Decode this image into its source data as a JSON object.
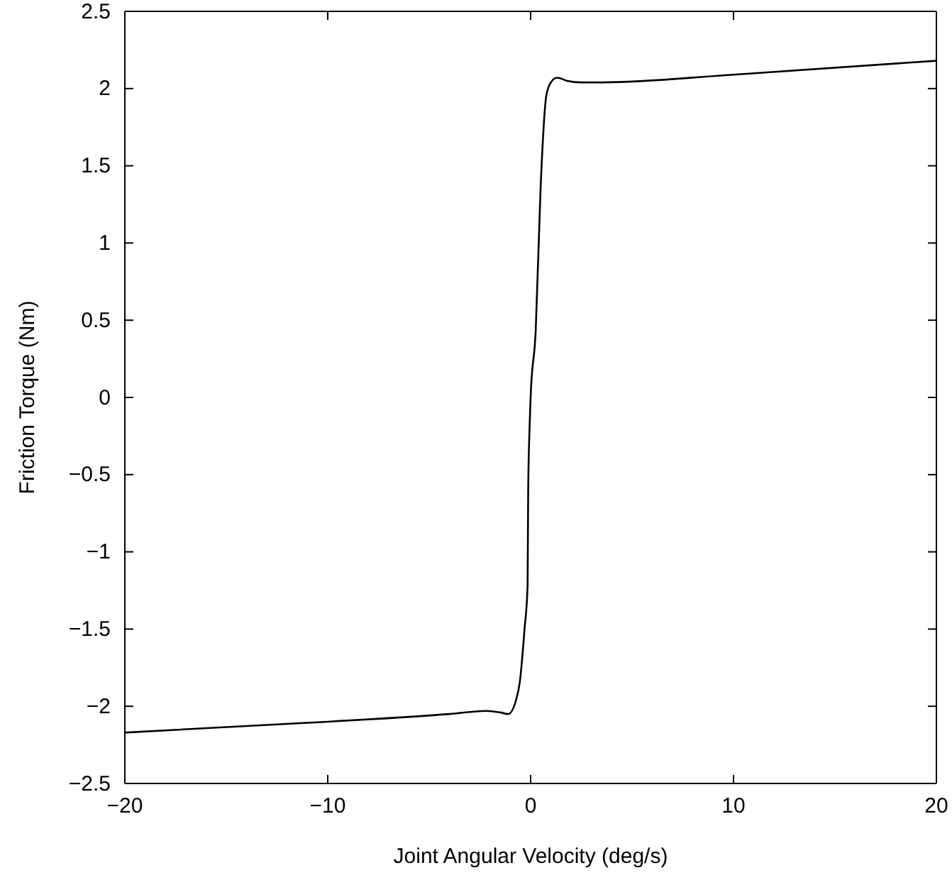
{
  "chart_data": {
    "type": "line",
    "xlabel": "Joint Angular Velocity (deg/s)",
    "ylabel": "Friction Torque (Nm)",
    "xlim": [
      -20,
      20
    ],
    "ylim": [
      -2.5,
      2.5
    ],
    "xticks": [
      {
        "value": -20,
        "label": "−20"
      },
      {
        "value": -10,
        "label": "−10"
      },
      0,
      10,
      20
    ],
    "yticks": [
      {
        "value": -2.5,
        "label": "−2.5"
      },
      {
        "value": -2,
        "label": "−2"
      },
      {
        "value": -1.5,
        "label": "−1.5"
      },
      {
        "value": -1,
        "label": "−1"
      },
      {
        "value": -0.5,
        "label": "−0.5"
      },
      0,
      0.5,
      1,
      1.5,
      2,
      2.5
    ],
    "series": [
      {
        "color": "#000000",
        "x": [
          -20,
          -10,
          -4,
          -2.2,
          -1.5,
          -1.1,
          -0.72,
          -0.53,
          -0.3,
          -0.15,
          -0.12,
          -0.05,
          0,
          0.25,
          0.49,
          0.78,
          1.0,
          1.3,
          1.8,
          2.5,
          3.5,
          10,
          20
        ],
        "values": [
          -2.17,
          -2.1,
          -2.05,
          -2.03,
          -2.04,
          -2.05,
          -1.96,
          -1.84,
          -1.5,
          -1.22,
          -0.61,
          -0.19,
          0,
          0.43,
          1.35,
          1.96,
          2.04,
          2.07,
          2.05,
          2.04,
          2.04,
          2.09,
          2.18
        ]
      }
    ]
  }
}
